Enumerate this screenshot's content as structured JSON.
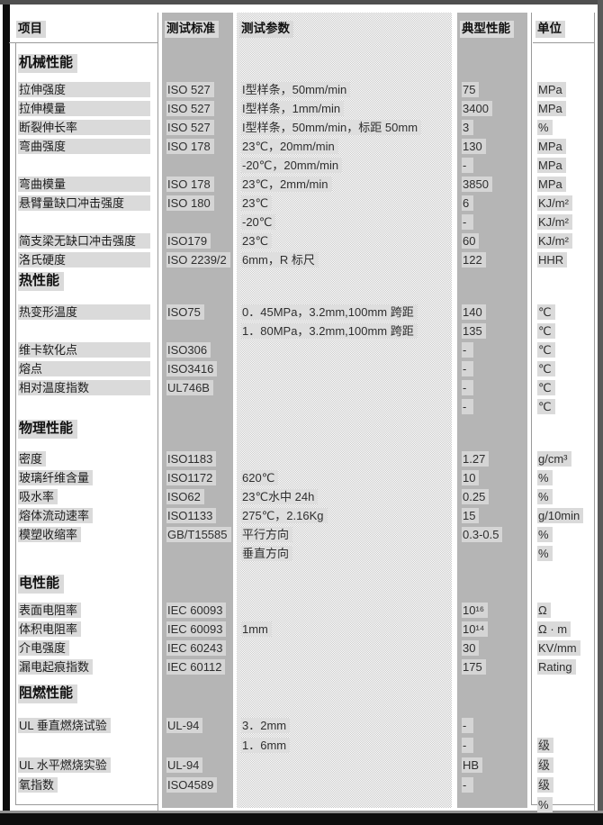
{
  "header": {
    "columns": [
      "项目",
      "测试标准",
      "测试参数",
      "典型性能",
      "单位"
    ]
  },
  "sections": [
    {
      "title": "机械性能",
      "rows": [
        {
          "item": "拉伸强度",
          "std": "ISO 527",
          "param": "I型样条，50mm/min",
          "val": "75",
          "unit": "MPa"
        },
        {
          "item": "拉伸模量",
          "std": "ISO 527",
          "param": "I型样条，1mm/min",
          "val": "3400",
          "unit": "MPa"
        },
        {
          "item": "断裂伸长率",
          "std": "ISO 527",
          "param": "I型样条，50mm/min，标距 50mm",
          "val": "3",
          "unit": "%"
        },
        {
          "item": "弯曲强度",
          "std": "ISO 178",
          "param": "23℃，20mm/min",
          "val": "130",
          "unit": "MPa"
        },
        {
          "item": "",
          "std": "",
          "param": "-20℃，20mm/min",
          "val": "-",
          "unit": "MPa"
        },
        {
          "item": "弯曲模量",
          "std": "ISO 178",
          "param": "23℃，2mm/min",
          "val": "3850",
          "unit": "MPa"
        },
        {
          "item": "悬臂量缺口冲击强度",
          "std": "ISO 180",
          "param": "23℃",
          "val": "6",
          "unit": "KJ/m²"
        },
        {
          "item": "",
          "std": "",
          "param": "-20℃",
          "val": "-",
          "unit": "KJ/m²"
        },
        {
          "item": "简支梁无缺口冲击强度",
          "std": "ISO179",
          "param": "23℃",
          "val": "60",
          "unit": "KJ/m²"
        },
        {
          "item": "洛氏硬度",
          "std": "ISO 2239/2",
          "param": "6mm，R 标尺",
          "val": "122",
          "unit": "HHR"
        }
      ]
    },
    {
      "title": "热性能",
      "rows": [
        {
          "item": "热变形温度",
          "std": "ISO75",
          "param": "0．45MPa，3.2mm,100mm 跨距",
          "val": "140",
          "unit": "℃"
        },
        {
          "item": "",
          "std": "",
          "param": "1．80MPa，3.2mm,100mm 跨距",
          "val": "135",
          "unit": "℃"
        },
        {
          "item": "维卡软化点",
          "std": "ISO306",
          "param": "",
          "val": "-",
          "unit": "℃"
        },
        {
          "item": "熔点",
          "std": "ISO3416",
          "param": "",
          "val": "-",
          "unit": "℃"
        },
        {
          "item": "相对温度指数",
          "std": "UL746B",
          "param": "",
          "val": "-",
          "unit": "℃"
        },
        {
          "item": "",
          "std": "",
          "param": "",
          "val": "-",
          "unit": "℃"
        }
      ]
    },
    {
      "title": "物理性能",
      "rows": [
        {
          "item": "密度",
          "std": "ISO1183",
          "param": "",
          "val": "1.27",
          "unit": "g/cm³"
        },
        {
          "item": "玻璃纤维含量",
          "std": "ISO1172",
          "param": "620℃",
          "val": "10",
          "unit": "%"
        },
        {
          "item": "吸水率",
          "std": "ISO62",
          "param": "23℃水中 24h",
          "val": "0.25",
          "unit": "%"
        },
        {
          "item": "熔体流动速率",
          "std": "ISO1133",
          "param": "275℃，2.16Kg",
          "val": "15",
          "unit": "g/10min"
        },
        {
          "item": "模塑收缩率",
          "std": "GB/T15585",
          "param": "平行方向",
          "val": "0.3-0.5",
          "unit": "%"
        },
        {
          "item": "",
          "std": "",
          "param": "垂直方向",
          "val": "",
          "unit": "%"
        }
      ]
    },
    {
      "title": "电性能",
      "rows": [
        {
          "item": "表面电阻率",
          "std": "IEC 60093",
          "param": "",
          "val": "10¹⁶",
          "unit": "Ω"
        },
        {
          "item": "体积电阻率",
          "std": "IEC 60093",
          "param": "1mm",
          "val": "10¹⁴",
          "unit": "Ω · m"
        },
        {
          "item": "介电强度",
          "std": "IEC 60243",
          "param": "",
          "val": "30",
          "unit": "KV/mm"
        },
        {
          "item": "漏电起痕指数",
          "std": "IEC 60112",
          "param": "",
          "val": "175",
          "unit": "Rating"
        }
      ]
    },
    {
      "title": "阻燃性能",
      "rows": [
        {
          "item": "UL 垂直燃烧试验",
          "std": "UL-94",
          "param": "3．2mm",
          "val": "-",
          "unit": ""
        },
        {
          "item": "",
          "std": "",
          "param": "1．6mm",
          "val": "-",
          "unit": "级"
        },
        {
          "item": "UL 水平燃烧实验",
          "std": "UL-94",
          "param": "",
          "val": "HB",
          "unit": "级"
        },
        {
          "item": "氧指数",
          "std": "ISO4589",
          "param": "",
          "val": "-",
          "unit": "级"
        },
        {
          "item": "",
          "std": "",
          "param": "",
          "val": "",
          "unit": "%"
        }
      ]
    }
  ],
  "colors": {
    "column_gray": "#b5b5b5",
    "highlight_gray": "#dadada",
    "frame_dark": "#0d0d0d",
    "frame_top": "#4f4f4f"
  }
}
